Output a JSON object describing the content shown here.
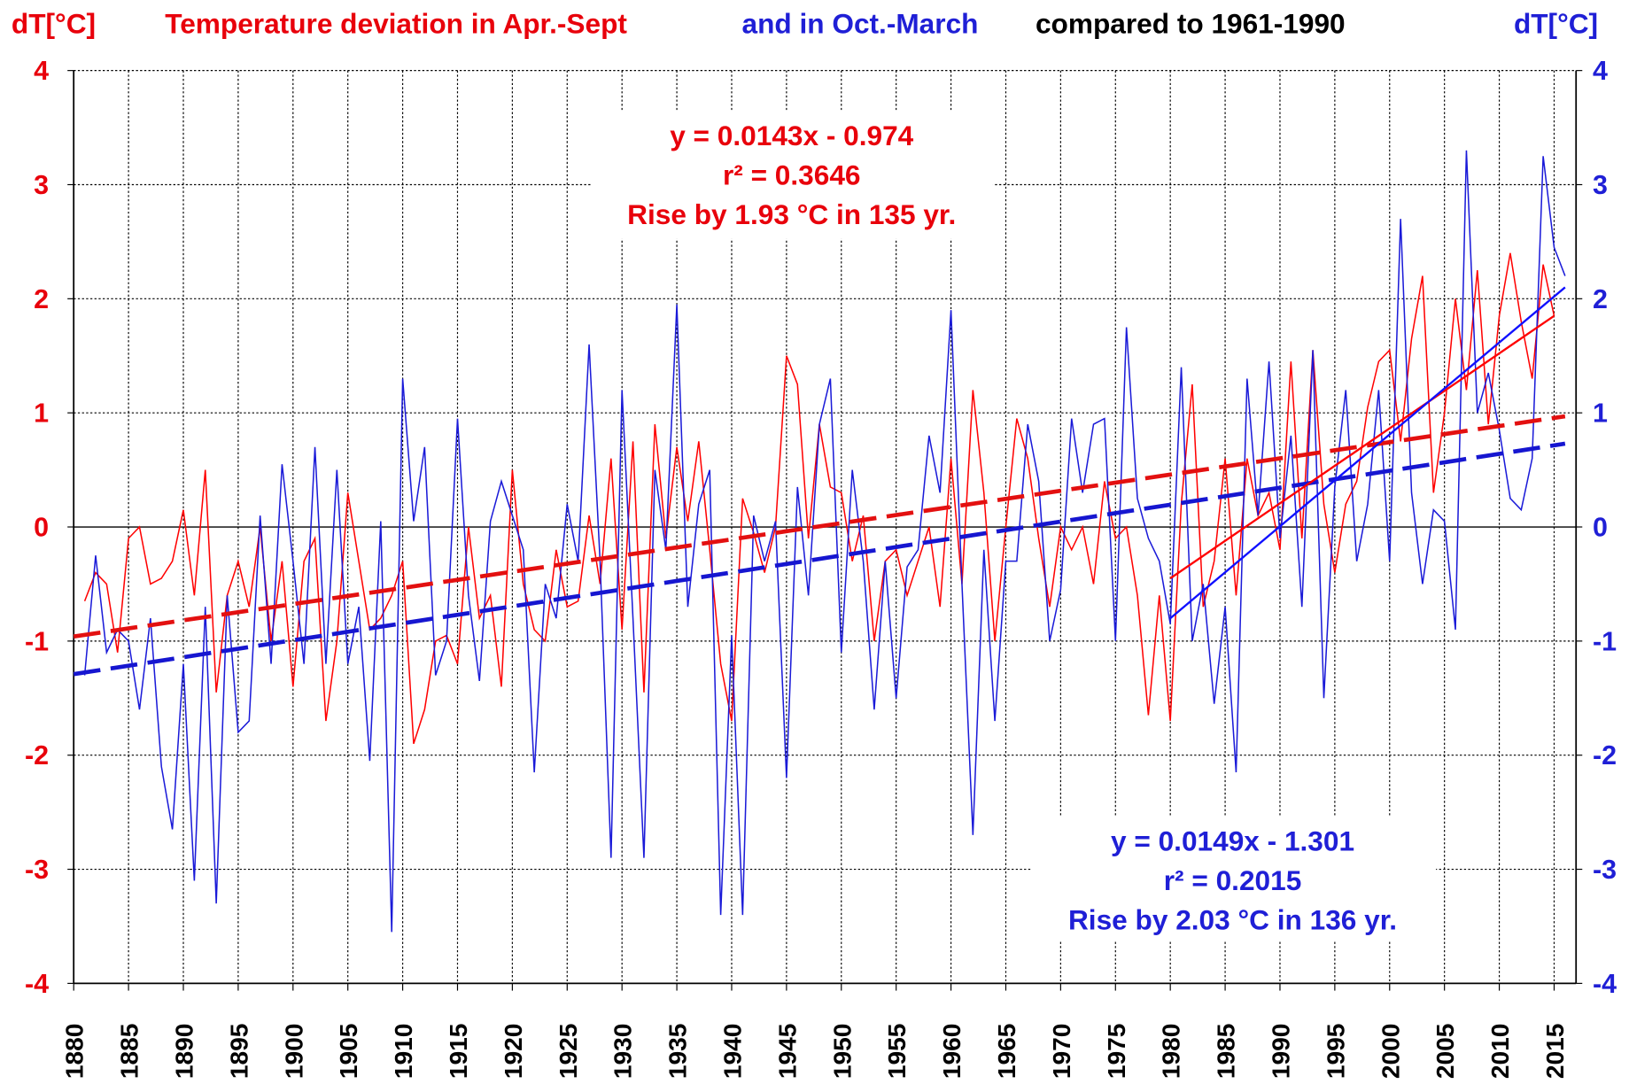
{
  "chart_data": {
    "type": "line",
    "title_parts": [
      {
        "text": "dT[°C]",
        "color": "#e8000b"
      },
      {
        "text": "Temperature deviation in Apr.-Sept",
        "color": "#e8000b"
      },
      {
        "text": "and in Oct.-March",
        "color": "#1f1fd6"
      },
      {
        "text": "compared to 1961-1990",
        "color": "#000000"
      },
      {
        "text": "dT[°C]",
        "color": "#1f1fd6"
      }
    ],
    "x": [
      1881,
      1882,
      1883,
      1884,
      1885,
      1886,
      1887,
      1888,
      1889,
      1890,
      1891,
      1892,
      1893,
      1894,
      1895,
      1896,
      1897,
      1898,
      1899,
      1900,
      1901,
      1902,
      1903,
      1904,
      1905,
      1906,
      1907,
      1908,
      1909,
      1910,
      1911,
      1912,
      1913,
      1914,
      1915,
      1916,
      1917,
      1918,
      1919,
      1920,
      1921,
      1922,
      1923,
      1924,
      1925,
      1926,
      1927,
      1928,
      1929,
      1930,
      1931,
      1932,
      1933,
      1934,
      1935,
      1936,
      1937,
      1938,
      1939,
      1940,
      1941,
      1942,
      1943,
      1944,
      1945,
      1946,
      1947,
      1948,
      1949,
      1950,
      1951,
      1952,
      1953,
      1954,
      1955,
      1956,
      1957,
      1958,
      1959,
      1960,
      1961,
      1962,
      1963,
      1964,
      1965,
      1966,
      1967,
      1968,
      1969,
      1970,
      1971,
      1972,
      1973,
      1974,
      1975,
      1976,
      1977,
      1978,
      1979,
      1980,
      1981,
      1982,
      1983,
      1984,
      1985,
      1986,
      1987,
      1988,
      1989,
      1990,
      1991,
      1992,
      1993,
      1994,
      1995,
      1996,
      1997,
      1998,
      1999,
      2000,
      2001,
      2002,
      2003,
      2004,
      2005,
      2006,
      2007,
      2008,
      2009,
      2010,
      2011,
      2012,
      2013,
      2014,
      2015,
      2016
    ],
    "series": [
      {
        "name": "Apr.-Sept",
        "color": "#ff0000",
        "axis": "y",
        "values": [
          -0.65,
          -0.4,
          -0.5,
          -1.1,
          -0.1,
          0.0,
          -0.5,
          -0.45,
          -0.3,
          0.15,
          -0.6,
          0.5,
          -1.45,
          -0.6,
          -0.3,
          -0.7,
          0.0,
          -1.0,
          -0.3,
          -1.4,
          -0.3,
          -0.1,
          -1.7,
          -1.0,
          0.3,
          -0.3,
          -0.9,
          -0.8,
          -0.6,
          -0.3,
          -1.9,
          -1.6,
          -1.0,
          -0.95,
          -1.2,
          0.0,
          -0.8,
          -0.6,
          -1.4,
          0.5,
          -0.5,
          -0.9,
          -1.0,
          -0.2,
          -0.7,
          -0.65,
          0.1,
          -0.5,
          0.6,
          -0.9,
          0.75,
          -1.45,
          0.9,
          -0.1,
          0.7,
          0.05,
          0.75,
          -0.2,
          -1.2,
          -1.7,
          0.25,
          -0.05,
          -0.4,
          0.0,
          1.5,
          1.25,
          -0.1,
          0.9,
          0.35,
          0.3,
          -0.3,
          0.1,
          -1.0,
          -0.3,
          -0.2,
          -0.6,
          -0.3,
          0.0,
          -0.7,
          0.6,
          -0.5,
          1.2,
          0.3,
          -1.0,
          0.0,
          0.95,
          0.6,
          -0.1,
          -0.7,
          0.0,
          -0.2,
          0.0,
          -0.5,
          0.4,
          -0.1,
          0.0,
          -0.6,
          -1.65,
          -0.6,
          -1.7,
          0.2,
          1.25,
          -0.7,
          -0.3,
          0.6,
          -0.6,
          0.6,
          0.1,
          0.3,
          -0.2,
          1.45,
          -0.1,
          1.55,
          0.2,
          -0.4,
          0.2,
          0.4,
          1.05,
          1.45,
          1.55,
          0.75,
          1.65,
          2.2,
          0.3,
          1.0,
          2.0,
          1.2,
          2.25,
          0.9,
          1.85,
          2.4,
          1.8,
          1.3,
          2.3,
          1.85,
          null
        ]
      },
      {
        "name": "Oct.-March",
        "color": "#1a1ad8",
        "axis": "y2",
        "values": [
          -1.3,
          -0.25,
          -1.1,
          -0.9,
          -1.0,
          -1.6,
          -0.8,
          -2.1,
          -2.65,
          -1.2,
          -3.1,
          -0.7,
          -3.3,
          -0.6,
          -1.8,
          -1.7,
          0.1,
          -1.2,
          0.55,
          -0.3,
          -1.2,
          0.7,
          -1.2,
          0.5,
          -1.2,
          -0.7,
          -2.05,
          0.05,
          -3.55,
          1.3,
          0.05,
          0.7,
          -1.3,
          -1.0,
          0.95,
          -0.6,
          -1.35,
          0.05,
          0.4,
          0.1,
          -0.2,
          -2.15,
          -0.5,
          -0.8,
          0.2,
          -0.3,
          1.6,
          -0.3,
          -2.9,
          1.2,
          -0.8,
          -2.9,
          0.5,
          -0.2,
          1.95,
          -0.7,
          0.2,
          0.5,
          -3.4,
          -0.95,
          -3.4,
          0.1,
          -0.3,
          0.05,
          -2.2,
          0.35,
          -0.6,
          0.9,
          1.3,
          -1.1,
          0.5,
          -0.3,
          -1.6,
          -0.3,
          -1.5,
          -0.35,
          -0.2,
          0.8,
          0.3,
          1.9,
          -0.5,
          -2.7,
          -0.2,
          -1.7,
          -0.3,
          -0.3,
          0.9,
          0.4,
          -1.0,
          -0.55,
          0.95,
          0.3,
          0.9,
          0.95,
          -1.0,
          1.75,
          0.25,
          -0.1,
          -0.3,
          -0.85,
          1.4,
          -1.0,
          -0.5,
          -1.55,
          -0.7,
          -2.15,
          1.3,
          0.1,
          1.45,
          -0.1,
          0.8,
          -0.7,
          1.55,
          -1.5,
          0.35,
          1.2,
          -0.3,
          0.2,
          1.2,
          -0.3,
          2.7,
          0.3,
          -0.5,
          0.15,
          0.05,
          -0.9,
          3.3,
          1.0,
          1.35,
          0.85,
          0.25,
          0.15,
          0.6,
          3.25,
          2.45,
          2.2
        ]
      }
    ],
    "trendlines": [
      {
        "color": "#e31010",
        "axis": "y",
        "style": "dashed",
        "x": [
          1880,
          2016
        ],
        "values": [
          -0.96,
          0.97
        ]
      },
      {
        "color": "#1616d0",
        "axis": "y2",
        "style": "dashed",
        "x": [
          1880,
          2016
        ],
        "values": [
          -1.29,
          0.73
        ]
      },
      {
        "color": "#ff0000",
        "axis": "y",
        "style": "solid",
        "x": [
          1980,
          2015
        ],
        "values": [
          -0.45,
          1.85
        ]
      },
      {
        "color": "#1010ff",
        "axis": "y2",
        "style": "solid",
        "x": [
          1980,
          2016
        ],
        "values": [
          -0.8,
          2.1
        ]
      }
    ],
    "annotations": [
      {
        "color": "#e8000b",
        "lines": [
          "y = 0.0143x - 0.974",
          "r² = 0.3646",
          "Rise by 1.93 °C in 135 yr."
        ]
      },
      {
        "color": "#1f1fd6",
        "lines": [
          "y = 0.0149x - 1.301",
          "r² = 0.2015",
          "Rise by 2.03 °C in 136 yr."
        ]
      }
    ],
    "xlim": [
      1880,
      2017
    ],
    "xticks": [
      1880,
      1885,
      1890,
      1895,
      1900,
      1905,
      1910,
      1915,
      1920,
      1925,
      1930,
      1935,
      1940,
      1945,
      1950,
      1955,
      1960,
      1965,
      1970,
      1975,
      1980,
      1985,
      1990,
      1995,
      2000,
      2005,
      2010,
      2015
    ],
    "ylim": [
      -4,
      4
    ],
    "yticks": [
      -4,
      -3,
      -2,
      -1,
      0,
      1,
      2,
      3,
      4
    ],
    "y2lim": [
      -4,
      4
    ],
    "y2ticks": [
      -4,
      -3,
      -2,
      -1,
      0,
      1,
      2,
      3,
      4
    ],
    "ytick_color": "#e8000b",
    "y2tick_color": "#1f1fd6",
    "grid": true
  }
}
